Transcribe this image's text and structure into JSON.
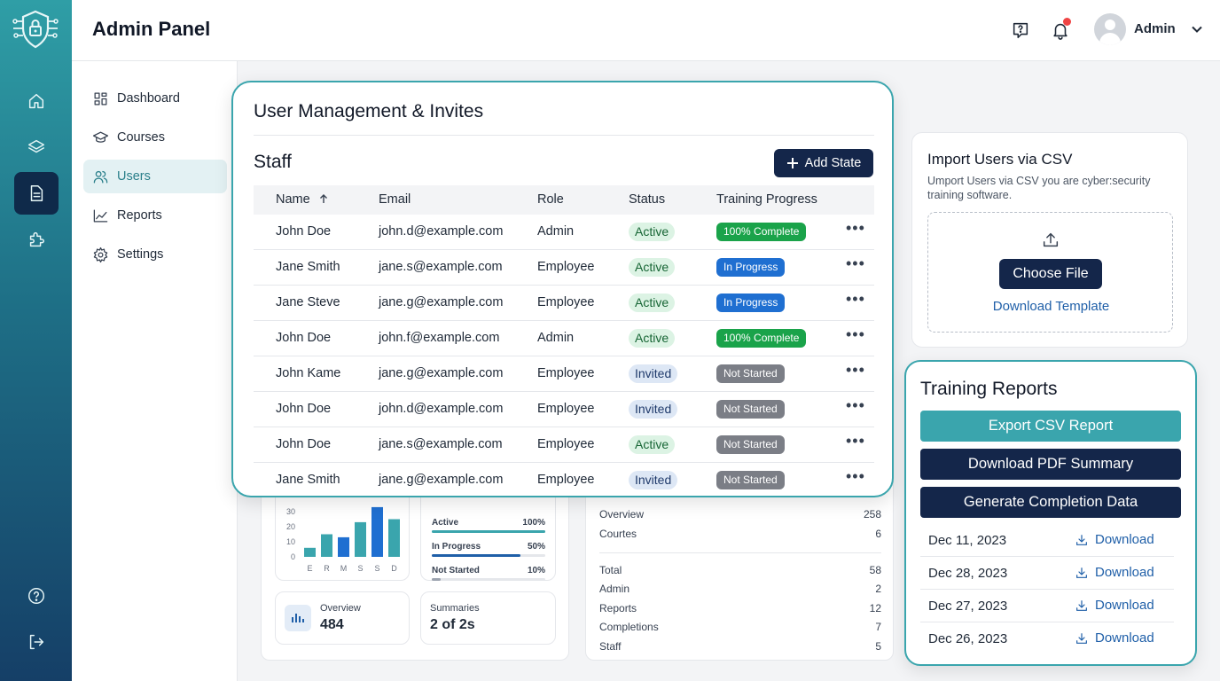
{
  "header": {
    "title": "Admin Panel",
    "user_name": "Admin"
  },
  "sidebar": {
    "items": [
      {
        "label": "Dashboard",
        "icon": "dashboard-icon"
      },
      {
        "label": "Courses",
        "icon": "graduation-cap-icon"
      },
      {
        "label": "Users",
        "icon": "users-icon",
        "active": true
      },
      {
        "label": "Reports",
        "icon": "chart-line-icon"
      },
      {
        "label": "Settings",
        "icon": "gear-icon"
      }
    ]
  },
  "modal": {
    "title": "User Management & Invites",
    "section": "Staff",
    "add_button": "Add State",
    "columns": [
      "Name",
      "Email",
      "Role",
      "Status",
      "Training Progress"
    ],
    "rows": [
      {
        "name": "John Doe",
        "email": "john.d@example.com",
        "role": "Admin",
        "status": "Active",
        "progress": "100% Complete"
      },
      {
        "name": "Jane Smith",
        "email": "jane.s@example.com",
        "role": "Employee",
        "status": "Active",
        "progress": "In Progress"
      },
      {
        "name": "Jane Steve",
        "email": "jane.g@example.com",
        "role": "Employee",
        "status": "Active",
        "progress": "In Progress"
      },
      {
        "name": "John Doe",
        "email": "john.f@example.com",
        "role": "Admin",
        "status": "Active",
        "progress": "100% Complete"
      },
      {
        "name": "John Kame",
        "email": "jane.g@example.com",
        "role": "Employee",
        "status": "Invited",
        "progress": "Not Started"
      },
      {
        "name": "John Doe",
        "email": "john.d@example.com",
        "role": "Employee",
        "status": "Invited",
        "progress": "Not Started"
      },
      {
        "name": "John Doe",
        "email": "jane.s@example.com",
        "role": "Employee",
        "status": "Active",
        "progress": "Not Started"
      },
      {
        "name": "Jane Smith",
        "email": "jane.g@example.com",
        "role": "Employee",
        "status": "Invited",
        "progress": "Not Started"
      }
    ]
  },
  "import": {
    "title": "Import Users via CSV",
    "description": "Umport Users via CSV you are cyber:security training software.",
    "choose_button": "Choose File",
    "template_link": "Download Template"
  },
  "reports": {
    "title": "Training Reports",
    "buttons": [
      "Export CSV Report",
      "Download PDF Summary",
      "Generate Completion Data"
    ],
    "download_label": "Download",
    "items": [
      {
        "date": "Dec 11, 2023"
      },
      {
        "date": "Dec 28, 2023"
      },
      {
        "date": "Dec 27, 2023"
      },
      {
        "date": "Dec 26, 2023"
      }
    ]
  },
  "bg_chart": {
    "y_ticks": [
      "30",
      "20",
      "10",
      "0"
    ],
    "categories": [
      "E",
      "R",
      "M",
      "S",
      "S",
      "D"
    ],
    "values": [
      6,
      15,
      13,
      23,
      33,
      25
    ]
  },
  "bg_progress": [
    {
      "label": "Active",
      "value": "100%"
    },
    {
      "label": "In Progress",
      "value": "50%"
    },
    {
      "label": "Not Started",
      "value": "10%"
    }
  ],
  "bg_stats": [
    {
      "label": "Overview",
      "value": "484"
    },
    {
      "label": "Summaries",
      "value": "2 of 2s"
    }
  ],
  "bg_summary": [
    {
      "label": "Overview",
      "value": "258"
    },
    {
      "label": "Courtes",
      "value": "6"
    },
    {
      "label": "Total",
      "value": "58"
    },
    {
      "label": "Admin",
      "value": "2"
    },
    {
      "label": "Reports",
      "value": "12"
    },
    {
      "label": "Completions",
      "value": "7"
    },
    {
      "label": "Staff",
      "value": "5"
    }
  ],
  "colors": {
    "accent": "#3aa5ad",
    "navy": "#14264a",
    "complete": "#1aa34a",
    "in_progress": "#1f6fd1",
    "not_started": "#7b7e86"
  }
}
